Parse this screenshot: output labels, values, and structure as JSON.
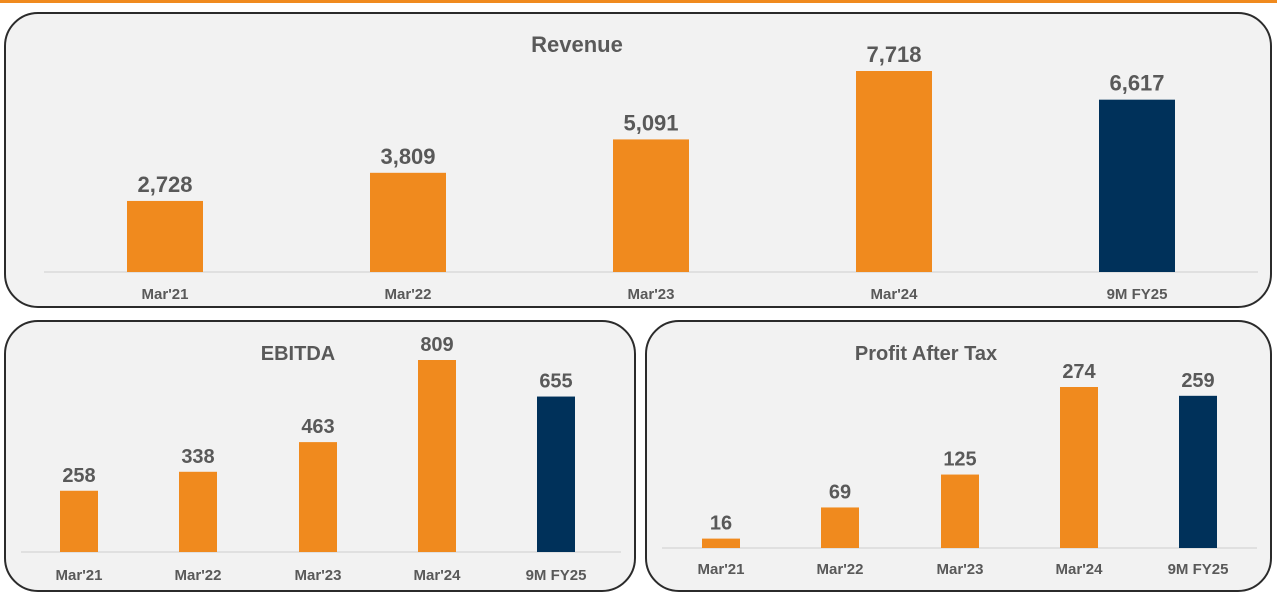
{
  "colors": {
    "accent": "#F08A1E",
    "highlight": "#00315A"
  },
  "chart_data": [
    {
      "type": "bar",
      "title": "Revenue",
      "categories": [
        "Mar'21",
        "Mar'22",
        "Mar'23",
        "Mar'24",
        "9M FY25"
      ],
      "values": [
        2728,
        3809,
        5091,
        7718,
        6617
      ],
      "value_labels": [
        "2,728",
        "3,809",
        "5,091",
        "7,718",
        "6,617"
      ],
      "bar_colors": [
        "#F08A1E",
        "#F08A1E",
        "#F08A1E",
        "#F08A1E",
        "#00315A"
      ],
      "ylim": [
        0,
        7718
      ],
      "grid": false,
      "legend": "none"
    },
    {
      "type": "bar",
      "title": "EBITDA",
      "categories": [
        "Mar'21",
        "Mar'22",
        "Mar'23",
        "Mar'24",
        "9M FY25"
      ],
      "values": [
        258,
        338,
        463,
        809,
        655
      ],
      "value_labels": [
        "258",
        "338",
        "463",
        "809",
        "655"
      ],
      "bar_colors": [
        "#F08A1E",
        "#F08A1E",
        "#F08A1E",
        "#F08A1E",
        "#00315A"
      ],
      "ylim": [
        0,
        809
      ],
      "grid": false,
      "legend": "none"
    },
    {
      "type": "bar",
      "title": "Profit After Tax",
      "categories": [
        "Mar'21",
        "Mar'22",
        "Mar'23",
        "Mar'24",
        "9M FY25"
      ],
      "values": [
        16,
        69,
        125,
        274,
        259
      ],
      "value_labels": [
        "16",
        "69",
        "125",
        "274",
        "259"
      ],
      "bar_colors": [
        "#F08A1E",
        "#F08A1E",
        "#F08A1E",
        "#F08A1E",
        "#00315A"
      ],
      "ylim": [
        0,
        274
      ],
      "grid": false,
      "legend": "none"
    }
  ]
}
